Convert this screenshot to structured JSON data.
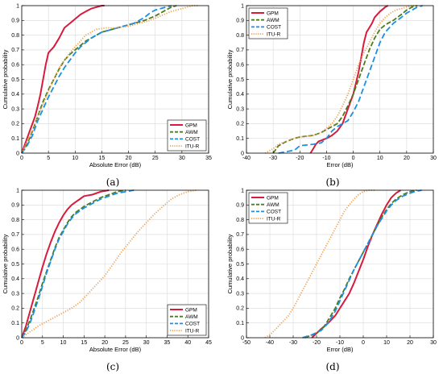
{
  "colors": {
    "GPM": "#d81b3d",
    "AWM": "#4e7a1e",
    "COST": "#1a8fe3",
    "ITU-R": "#f0a050"
  },
  "chart_data": [
    {
      "type": "line",
      "panel_label": "(a)",
      "xlabel": "Absolute Error (dB)",
      "ylabel": "Cumulative probability",
      "xlim": [
        0,
        35
      ],
      "ylim": [
        0,
        1
      ],
      "xticks": [
        0,
        5,
        10,
        15,
        20,
        25,
        30,
        35
      ],
      "yticks": [
        0,
        0.1,
        0.2,
        0.3,
        0.4,
        0.5,
        0.6,
        0.7,
        0.8,
        0.9,
        1
      ],
      "grid": true,
      "legend_position": "bottom-right",
      "series": [
        {
          "name": "GPM",
          "x": [
            0,
            0.5,
            1,
            1.5,
            2,
            2.5,
            3,
            3.5,
            4,
            4.5,
            5,
            6,
            7,
            8,
            9,
            10,
            11,
            12,
            13,
            14,
            15,
            15.5
          ],
          "y": [
            0,
            0.05,
            0.1,
            0.15,
            0.2,
            0.25,
            0.32,
            0.4,
            0.5,
            0.6,
            0.68,
            0.72,
            0.78,
            0.85,
            0.88,
            0.91,
            0.94,
            0.96,
            0.98,
            0.99,
            1,
            1
          ]
        },
        {
          "name": "AWM",
          "x": [
            0,
            1,
            2,
            3,
            4,
            5,
            6,
            7,
            8,
            9,
            10,
            11,
            12,
            13,
            14,
            15,
            17,
            19,
            21,
            23,
            25,
            27,
            28,
            29
          ],
          "y": [
            0,
            0.06,
            0.15,
            0.25,
            0.35,
            0.43,
            0.5,
            0.57,
            0.63,
            0.67,
            0.7,
            0.73,
            0.76,
            0.78,
            0.8,
            0.82,
            0.84,
            0.86,
            0.88,
            0.9,
            0.93,
            0.97,
            0.99,
            1
          ]
        },
        {
          "name": "COST",
          "x": [
            0,
            1,
            2,
            3,
            4,
            5,
            6,
            7,
            8,
            9,
            10,
            11,
            12,
            13,
            14,
            15,
            17,
            19,
            21,
            23,
            24,
            25,
            27,
            28
          ],
          "y": [
            0,
            0.05,
            0.12,
            0.22,
            0.3,
            0.38,
            0.45,
            0.52,
            0.58,
            0.63,
            0.68,
            0.72,
            0.75,
            0.78,
            0.8,
            0.82,
            0.84,
            0.86,
            0.88,
            0.92,
            0.95,
            0.97,
            0.99,
            1
          ]
        },
        {
          "name": "ITU-R",
          "x": [
            0,
            1,
            2,
            3,
            4,
            5,
            6,
            7,
            8,
            9,
            10,
            11,
            12,
            14,
            16,
            18,
            20,
            22,
            24,
            26,
            28,
            30,
            32,
            33
          ],
          "y": [
            0,
            0.08,
            0.15,
            0.25,
            0.33,
            0.42,
            0.5,
            0.58,
            0.63,
            0.68,
            0.72,
            0.76,
            0.8,
            0.84,
            0.85,
            0.85,
            0.86,
            0.88,
            0.9,
            0.93,
            0.96,
            0.98,
            1,
            1
          ]
        }
      ]
    },
    {
      "type": "line",
      "panel_label": "(b)",
      "xlabel": "Error (dB)",
      "ylabel": "Cumulative probability",
      "xlim": [
        -40,
        30
      ],
      "ylim": [
        0,
        1
      ],
      "xticks": [
        -40,
        -30,
        -20,
        -10,
        0,
        10,
        20,
        30
      ],
      "yticks": [
        0,
        0.1,
        0.2,
        0.3,
        0.4,
        0.5,
        0.6,
        0.7,
        0.8,
        0.9,
        1
      ],
      "grid": true,
      "legend_position": "top-left",
      "series": [
        {
          "name": "GPM",
          "x": [
            -16,
            -15,
            -14,
            -13,
            -10,
            -8,
            -6,
            -4,
            -2,
            0,
            2,
            3,
            4,
            5,
            6,
            7,
            8,
            10,
            12,
            13
          ],
          "y": [
            0,
            0.03,
            0.06,
            0.08,
            0.1,
            0.12,
            0.15,
            0.2,
            0.3,
            0.4,
            0.55,
            0.65,
            0.75,
            0.82,
            0.85,
            0.88,
            0.92,
            0.96,
            0.99,
            1
          ]
        },
        {
          "name": "AWM",
          "x": [
            -30,
            -28,
            -25,
            -22,
            -20,
            -15,
            -12,
            -10,
            -8,
            -6,
            -4,
            -2,
            0,
            2,
            4,
            6,
            8,
            10,
            12,
            15,
            18,
            20,
            22,
            24
          ],
          "y": [
            0,
            0.05,
            0.08,
            0.1,
            0.11,
            0.12,
            0.14,
            0.16,
            0.18,
            0.2,
            0.25,
            0.32,
            0.4,
            0.5,
            0.6,
            0.7,
            0.78,
            0.84,
            0.87,
            0.9,
            0.94,
            0.97,
            0.99,
            1
          ]
        },
        {
          "name": "COST",
          "x": [
            -28,
            -22,
            -20,
            -15,
            -12,
            -10,
            -8,
            -6,
            -4,
            -2,
            0,
            2,
            4,
            6,
            8,
            10,
            12,
            15,
            18,
            20,
            22,
            24,
            26
          ],
          "y": [
            0,
            0.02,
            0.05,
            0.06,
            0.07,
            0.1,
            0.15,
            0.18,
            0.2,
            0.22,
            0.28,
            0.35,
            0.45,
            0.55,
            0.65,
            0.75,
            0.82,
            0.88,
            0.92,
            0.95,
            0.97,
            0.99,
            1
          ]
        },
        {
          "name": "ITU-R",
          "x": [
            -33,
            -30,
            -28,
            -25,
            -22,
            -20,
            -15,
            -12,
            -10,
            -8,
            -6,
            -4,
            -2,
            0,
            2,
            4,
            6,
            8,
            10,
            12,
            14,
            16,
            18,
            20,
            22,
            24
          ],
          "y": [
            0,
            0.03,
            0.06,
            0.08,
            0.1,
            0.11,
            0.12,
            0.14,
            0.17,
            0.2,
            0.25,
            0.32,
            0.4,
            0.5,
            0.6,
            0.68,
            0.75,
            0.82,
            0.88,
            0.92,
            0.95,
            0.97,
            0.98,
            0.99,
            1,
            1
          ]
        }
      ]
    },
    {
      "type": "line",
      "panel_label": "(c)",
      "xlabel": "Absolute Error (dB)",
      "ylabel": "Cumulative probability",
      "xlim": [
        0,
        45
      ],
      "ylim": [
        0,
        1
      ],
      "xticks": [
        0,
        5,
        10,
        15,
        20,
        25,
        30,
        35,
        40,
        45
      ],
      "yticks": [
        0,
        0.1,
        0.2,
        0.3,
        0.4,
        0.5,
        0.6,
        0.7,
        0.8,
        0.9,
        1
      ],
      "grid": true,
      "legend_position": "bottom-right",
      "series": [
        {
          "name": "GPM",
          "x": [
            0,
            1,
            2,
            3,
            4,
            5,
            6,
            7,
            8,
            9,
            10,
            11,
            12,
            13,
            14,
            15,
            17,
            19,
            21
          ],
          "y": [
            0,
            0.08,
            0.18,
            0.28,
            0.38,
            0.48,
            0.57,
            0.65,
            0.72,
            0.78,
            0.83,
            0.87,
            0.9,
            0.92,
            0.94,
            0.96,
            0.97,
            0.99,
            1
          ]
        },
        {
          "name": "AWM",
          "x": [
            0,
            1,
            2,
            3,
            4,
            5,
            6,
            7,
            8,
            9,
            10,
            11,
            12,
            13,
            14,
            15,
            17,
            19,
            21,
            23,
            25
          ],
          "y": [
            0,
            0.05,
            0.12,
            0.2,
            0.28,
            0.37,
            0.45,
            0.53,
            0.61,
            0.68,
            0.73,
            0.78,
            0.82,
            0.85,
            0.87,
            0.89,
            0.92,
            0.95,
            0.97,
            0.99,
            1
          ]
        },
        {
          "name": "COST",
          "x": [
            0,
            1,
            2,
            3,
            4,
            5,
            6,
            7,
            8,
            9,
            10,
            11,
            12,
            13,
            14,
            15,
            17,
            19,
            21,
            23,
            25,
            27
          ],
          "y": [
            0,
            0.04,
            0.1,
            0.18,
            0.26,
            0.35,
            0.44,
            0.52,
            0.6,
            0.67,
            0.72,
            0.77,
            0.81,
            0.84,
            0.86,
            0.88,
            0.91,
            0.94,
            0.96,
            0.98,
            0.99,
            1
          ]
        },
        {
          "name": "ITU-R",
          "x": [
            0,
            2,
            4,
            6,
            8,
            10,
            12,
            14,
            16,
            18,
            20,
            22,
            24,
            26,
            28,
            30,
            32,
            34,
            36,
            38,
            40,
            42
          ],
          "y": [
            0,
            0.04,
            0.08,
            0.11,
            0.14,
            0.17,
            0.2,
            0.24,
            0.3,
            0.36,
            0.42,
            0.5,
            0.58,
            0.65,
            0.72,
            0.78,
            0.84,
            0.89,
            0.94,
            0.97,
            0.99,
            1
          ]
        }
      ]
    },
    {
      "type": "line",
      "panel_label": "(d)",
      "xlabel": "Error (dB)",
      "ylabel": "Cumulative probability",
      "xlim": [
        -50,
        30
      ],
      "ylim": [
        0,
        1
      ],
      "xticks": [
        -50,
        -40,
        -30,
        -20,
        -10,
        0,
        10,
        20,
        30
      ],
      "yticks": [
        0,
        0.1,
        0.2,
        0.3,
        0.4,
        0.5,
        0.6,
        0.7,
        0.8,
        0.9,
        1
      ],
      "grid": true,
      "legend_position": "top-left",
      "series": [
        {
          "name": "GPM",
          "x": [
            -22,
            -20,
            -18,
            -15,
            -12,
            -10,
            -8,
            -6,
            -4,
            -2,
            0,
            2,
            4,
            6,
            8,
            10,
            12,
            14,
            16
          ],
          "y": [
            0,
            0.03,
            0.06,
            0.1,
            0.15,
            0.2,
            0.25,
            0.3,
            0.37,
            0.45,
            0.53,
            0.62,
            0.7,
            0.77,
            0.84,
            0.9,
            0.95,
            0.98,
            1
          ]
        },
        {
          "name": "AWM",
          "x": [
            -25,
            -20,
            -17,
            -15,
            -12,
            -10,
            -8,
            -6,
            -4,
            -2,
            0,
            2,
            4,
            6,
            8,
            10,
            12,
            14,
            17,
            20,
            23
          ],
          "y": [
            0,
            0.03,
            0.07,
            0.12,
            0.2,
            0.27,
            0.33,
            0.4,
            0.46,
            0.52,
            0.58,
            0.64,
            0.7,
            0.76,
            0.82,
            0.87,
            0.91,
            0.94,
            0.97,
            0.99,
            1
          ]
        },
        {
          "name": "COST",
          "x": [
            -26,
            -22,
            -18,
            -15,
            -12,
            -10,
            -8,
            -6,
            -4,
            -2,
            0,
            2,
            4,
            6,
            8,
            10,
            12,
            14,
            17,
            20,
            22,
            25
          ],
          "y": [
            0,
            0.02,
            0.05,
            0.1,
            0.18,
            0.25,
            0.32,
            0.39,
            0.46,
            0.52,
            0.58,
            0.64,
            0.7,
            0.76,
            0.81,
            0.86,
            0.9,
            0.93,
            0.96,
            0.98,
            0.99,
            1
          ]
        },
        {
          "name": "ITU-R",
          "x": [
            -42,
            -40,
            -38,
            -35,
            -32,
            -30,
            -28,
            -26,
            -24,
            -22,
            -20,
            -18,
            -16,
            -14,
            -12,
            -10,
            -8,
            -6,
            -4,
            -2,
            0,
            2,
            5
          ],
          "y": [
            0,
            0.02,
            0.05,
            0.1,
            0.15,
            0.2,
            0.26,
            0.32,
            0.38,
            0.44,
            0.5,
            0.56,
            0.62,
            0.68,
            0.74,
            0.8,
            0.86,
            0.9,
            0.94,
            0.97,
            0.99,
            1,
            1
          ]
        }
      ]
    }
  ]
}
